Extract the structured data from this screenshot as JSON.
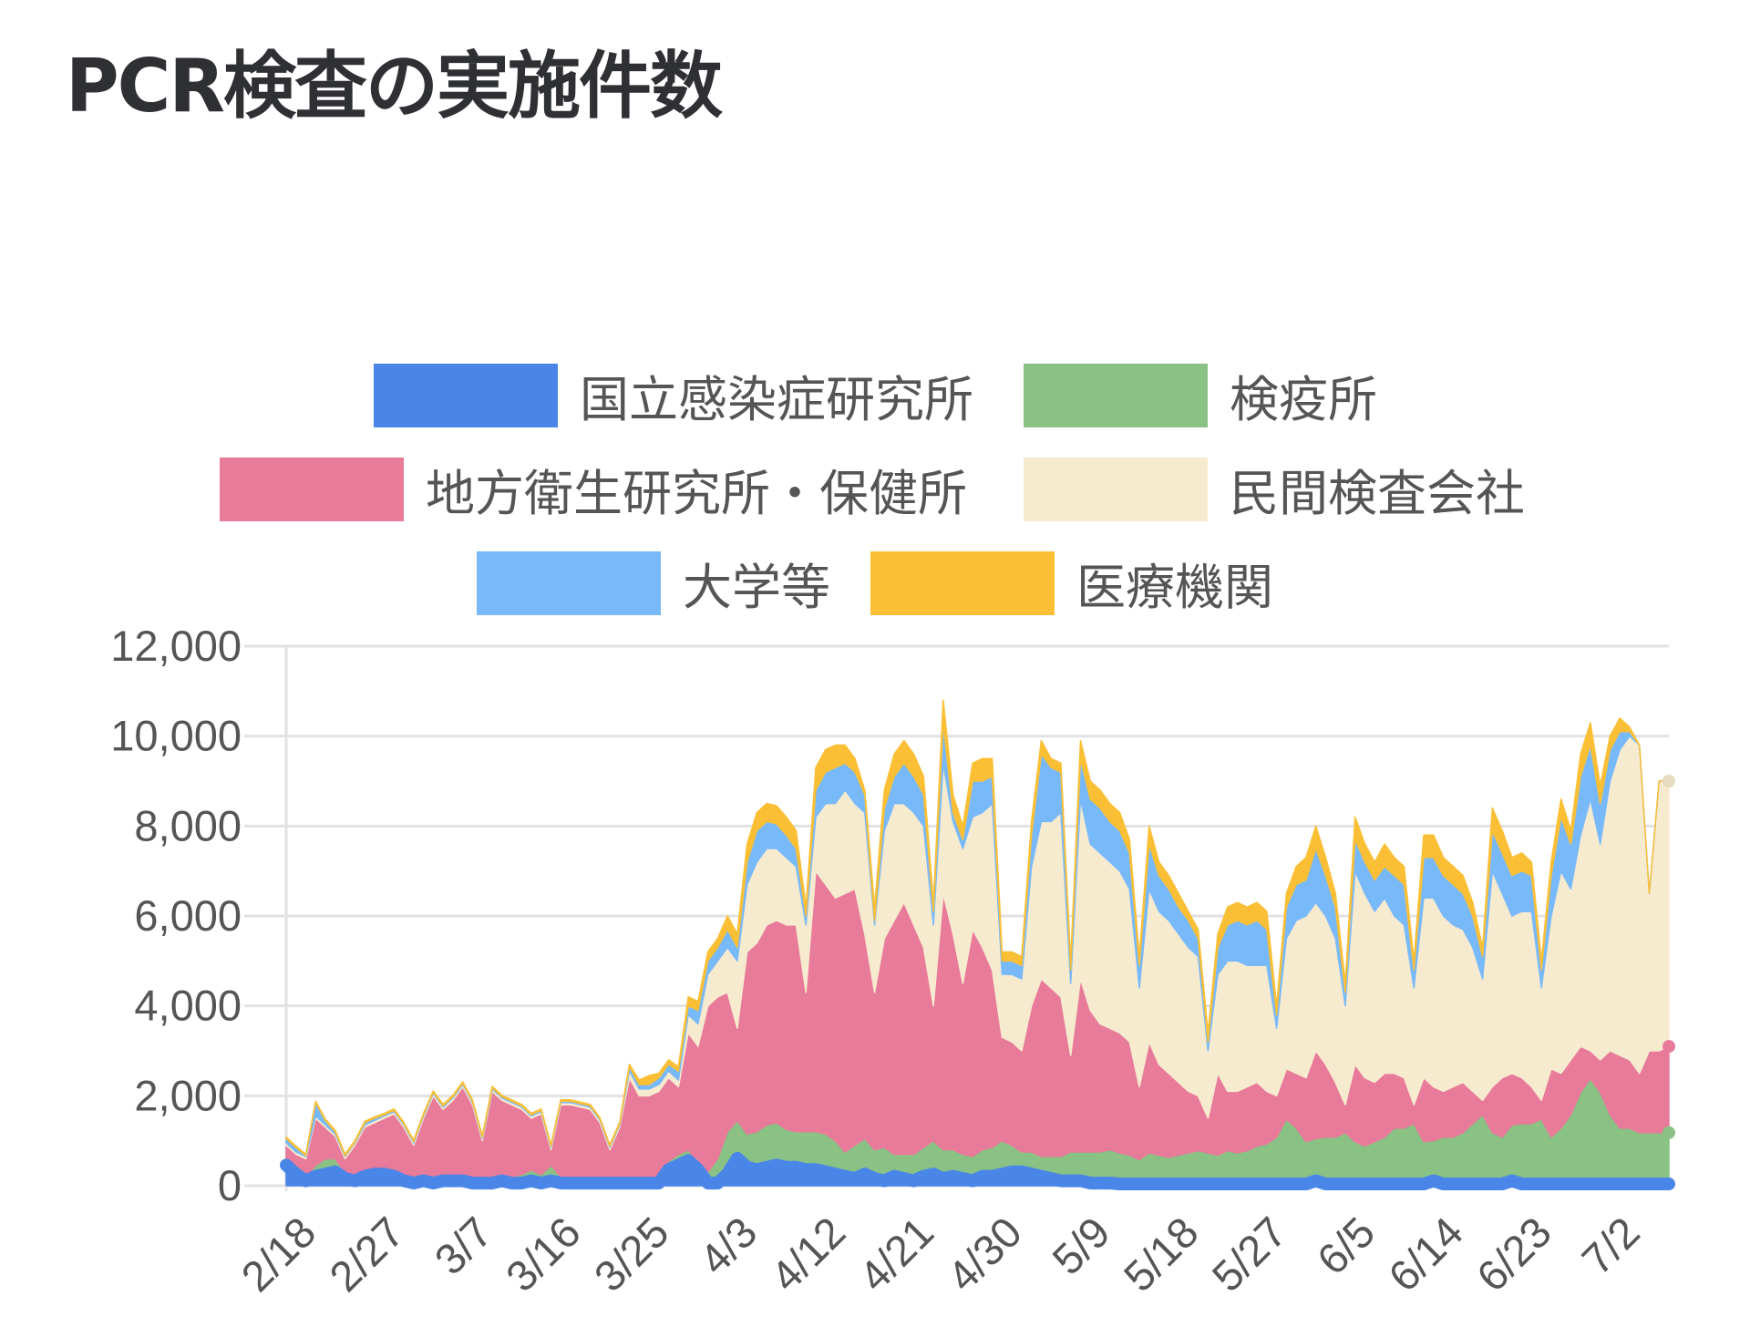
{
  "title": "PCR検査の実施件数",
  "chart_data": {
    "type": "area",
    "stacked": true,
    "title": "PCR検査の実施件数",
    "xlabel": "",
    "ylabel": "",
    "ylim": [
      0,
      12000
    ],
    "grid": true,
    "legend_position": "top",
    "x_start": "2/18",
    "x_end": "7/8",
    "x_tick_labels": [
      "2/18",
      "2/27",
      "3/7",
      "3/16",
      "3/25",
      "4/3",
      "4/12",
      "4/21",
      "4/30",
      "5/9",
      "5/18",
      "5/27",
      "6/5",
      "6/14",
      "6/23",
      "7/2"
    ],
    "y_tick_labels": [
      "0",
      "2,000",
      "4,000",
      "6,000",
      "8,000",
      "10,000",
      "12,000"
    ],
    "y_ticks": [
      0,
      2000,
      4000,
      6000,
      8000,
      10000,
      12000
    ],
    "series": [
      {
        "name": "国立感染症研究所",
        "color": "#4a86e8",
        "values": [
          500,
          300,
          150,
          250,
          300,
          350,
          200,
          150,
          250,
          300,
          300,
          250,
          150,
          100,
          150,
          100,
          150,
          150,
          150,
          100,
          100,
          100,
          150,
          100,
          100,
          150,
          100,
          150,
          100,
          100,
          100,
          100,
          100,
          100,
          100,
          100,
          100,
          100,
          100,
          400,
          500,
          600,
          400,
          100,
          100,
          300,
          650,
          450,
          400,
          450,
          500,
          450,
          450,
          400,
          400,
          350,
          300,
          250,
          200,
          300,
          200,
          150,
          250,
          200,
          150,
          250,
          300,
          200,
          250,
          200,
          150,
          250,
          250,
          300,
          350,
          350,
          300,
          250,
          200,
          150,
          150,
          150,
          100,
          100,
          100,
          80,
          80,
          80,
          80,
          80,
          80,
          80,
          80,
          80,
          80,
          80,
          80,
          80,
          80,
          80,
          80,
          80,
          80,
          80,
          80,
          150,
          80,
          80,
          80,
          80,
          80,
          80,
          80,
          80,
          80,
          80,
          80,
          150,
          80,
          80,
          80,
          80,
          80,
          80,
          80,
          150,
          80,
          80,
          80,
          80,
          80,
          80,
          80,
          80,
          80,
          80,
          80,
          80,
          80,
          80,
          80,
          80
        ]
      },
      {
        "name": "検疫所",
        "color": "#89c284",
        "values": [
          100,
          100,
          50,
          200,
          300,
          250,
          100,
          50,
          100,
          100,
          50,
          50,
          50,
          50,
          50,
          50,
          50,
          50,
          50,
          50,
          50,
          50,
          50,
          100,
          150,
          200,
          150,
          300,
          100,
          50,
          50,
          50,
          50,
          50,
          50,
          50,
          50,
          50,
          100,
          150,
          200,
          200,
          100,
          200,
          500,
          900,
          800,
          700,
          800,
          900,
          900,
          800,
          750,
          800,
          800,
          800,
          700,
          500,
          700,
          750,
          600,
          700,
          450,
          500,
          550,
          600,
          700,
          600,
          550,
          500,
          500,
          550,
          600,
          700,
          550,
          400,
          450,
          400,
          450,
          500,
          600,
          600,
          650,
          650,
          700,
          650,
          600,
          500,
          650,
          600,
          550,
          600,
          650,
          700,
          650,
          600,
          700,
          650,
          700,
          800,
          850,
          1000,
          1400,
          1200,
          900,
          900,
          1000,
          1000,
          1100,
          900,
          800,
          900,
          1000,
          1200,
          1200,
          1300,
          900,
          850,
          1000,
          1000,
          1100,
          1300,
          1500,
          1100,
          1000,
          1200,
          1300,
          1300,
          1400,
          1000,
          1200,
          1500,
          2000,
          2300,
          2000,
          1500,
          1200,
          1200,
          1100,
          1100,
          1100,
          1100
        ]
      },
      {
        "name": "地方衛生研究所・保健所",
        "color": "#e87a9a",
        "values": [
          300,
          300,
          400,
          1050,
          700,
          500,
          300,
          700,
          950,
          1000,
          1150,
          1300,
          1100,
          750,
          1300,
          1850,
          1500,
          1700,
          2000,
          1650,
          850,
          1950,
          1700,
          1600,
          1450,
          1150,
          1350,
          350,
          1600,
          1650,
          1600,
          1550,
          1250,
          650,
          1150,
          2250,
          1850,
          1850,
          1900,
          1850,
          1500,
          2600,
          2600,
          3700,
          3600,
          3100,
          2050,
          4050,
          4200,
          4450,
          4500,
          4550,
          4600,
          3100,
          5800,
          5550,
          5400,
          5750,
          5700,
          4550,
          3500,
          4650,
          5200,
          5600,
          5100,
          4450,
          3000,
          5700,
          4800,
          3800,
          5050,
          4500,
          3950,
          2300,
          2300,
          2250,
          3250,
          3950,
          3750,
          3550,
          2150,
          3850,
          3150,
          2850,
          2700,
          2670,
          2520,
          1620,
          2470,
          2020,
          1870,
          1620,
          1370,
          1220,
          770,
          1820,
          1320,
          1370,
          1420,
          1420,
          1170,
          920,
          1120,
          1220,
          1420,
          1950,
          1620,
          1220,
          620,
          1720,
          1520,
          1320,
          1420,
          1220,
          1120,
          420,
          1420,
          1200,
          1020,
          1120,
          1120,
          720,
          320,
          1020,
          1320,
          1150,
          1020,
          820,
          420,
          1520,
          1220,
          1220,
          1020,
          620,
          720,
          1420,
          1620,
          1520,
          1320,
          1820,
          1820,
          1920
        ]
      },
      {
        "name": "民間検査会社",
        "color": "#f7ebcf",
        "values": [
          50,
          50,
          50,
          50,
          50,
          50,
          50,
          50,
          50,
          50,
          50,
          50,
          50,
          50,
          50,
          50,
          50,
          50,
          50,
          50,
          50,
          50,
          50,
          50,
          50,
          50,
          50,
          50,
          50,
          50,
          50,
          50,
          50,
          50,
          50,
          150,
          150,
          150,
          150,
          150,
          150,
          400,
          500,
          700,
          800,
          1000,
          1500,
          1500,
          1800,
          1700,
          1600,
          1500,
          1300,
          1500,
          1200,
          1800,
          2100,
          2300,
          1900,
          2700,
          1500,
          2400,
          2600,
          2200,
          2500,
          2700,
          1800,
          2900,
          2500,
          3000,
          2500,
          3000,
          3700,
          1400,
          1500,
          1600,
          3100,
          3500,
          3700,
          4100,
          1600,
          4000,
          3700,
          3800,
          3700,
          3600,
          3400,
          2200,
          3400,
          3400,
          3400,
          3300,
          3200,
          3100,
          1500,
          2200,
          2900,
          2900,
          2700,
          2600,
          2800,
          1500,
          2900,
          3400,
          3600,
          3300,
          3300,
          3200,
          2200,
          4300,
          4100,
          3800,
          3900,
          3500,
          3400,
          2600,
          4000,
          4200,
          3900,
          3600,
          3400,
          3200,
          2700,
          4800,
          4100,
          3500,
          3700,
          3900,
          2500,
          3400,
          4500,
          3800,
          4700,
          5600,
          4800,
          6000,
          6800,
          7200,
          7300,
          3500,
          6000,
          5900
        ]
      },
      {
        "name": "大学等",
        "color": "#78b9fa",
        "values": [
          100,
          100,
          20,
          300,
          100,
          50,
          20,
          20,
          50,
          50,
          30,
          30,
          30,
          30,
          30,
          30,
          30,
          30,
          30,
          30,
          30,
          30,
          30,
          30,
          30,
          30,
          30,
          30,
          30,
          30,
          30,
          30,
          30,
          30,
          30,
          100,
          100,
          100,
          150,
          150,
          200,
          200,
          300,
          300,
          300,
          400,
          300,
          500,
          700,
          600,
          550,
          500,
          400,
          200,
          600,
          700,
          800,
          600,
          700,
          400,
          100,
          500,
          600,
          900,
          800,
          700,
          300,
          900,
          200,
          200,
          800,
          700,
          600,
          300,
          300,
          300,
          700,
          1500,
          1200,
          900,
          300,
          900,
          1000,
          1000,
          900,
          900,
          800,
          500,
          1000,
          800,
          700,
          600,
          600,
          400,
          200,
          600,
          800,
          900,
          900,
          1000,
          800,
          300,
          700,
          800,
          800,
          1200,
          900,
          700,
          300,
          700,
          700,
          700,
          700,
          900,
          900,
          400,
          900,
          900,
          900,
          900,
          800,
          700,
          500,
          900,
          900,
          900,
          900,
          800,
          400,
          900,
          1200,
          1000,
          1300,
          1200,
          900,
          700,
          400,
          100,
          0,
          0,
          0,
          0
        ]
      },
      {
        "name": "医療機関",
        "color": "#fbbf35",
        "values": [
          30,
          30,
          30,
          30,
          30,
          30,
          30,
          30,
          30,
          30,
          30,
          30,
          30,
          30,
          30,
          30,
          30,
          30,
          30,
          30,
          30,
          30,
          30,
          30,
          30,
          30,
          30,
          30,
          30,
          30,
          30,
          30,
          30,
          30,
          30,
          50,
          100,
          200,
          100,
          100,
          100,
          200,
          200,
          200,
          200,
          300,
          300,
          400,
          400,
          400,
          400,
          400,
          400,
          200,
          500,
          500,
          500,
          400,
          300,
          100,
          300,
          400,
          500,
          500,
          500,
          400,
          200,
          500,
          400,
          300,
          400,
          500,
          400,
          200,
          200,
          200,
          300,
          300,
          200,
          200,
          200,
          400,
          400,
          400,
          400,
          400,
          300,
          200,
          400,
          300,
          300,
          300,
          200,
          200,
          200,
          300,
          400,
          400,
          400,
          400,
          400,
          200,
          300,
          400,
          500,
          500,
          400,
          300,
          200,
          500,
          400,
          400,
          500,
          400,
          400,
          200,
          500,
          500,
          400,
          400,
          400,
          300,
          200,
          500,
          500,
          400,
          400,
          300,
          200,
          300,
          400,
          300,
          500,
          500,
          400,
          300,
          300,
          100,
          0,
          0,
          0,
          0
        ]
      }
    ]
  }
}
